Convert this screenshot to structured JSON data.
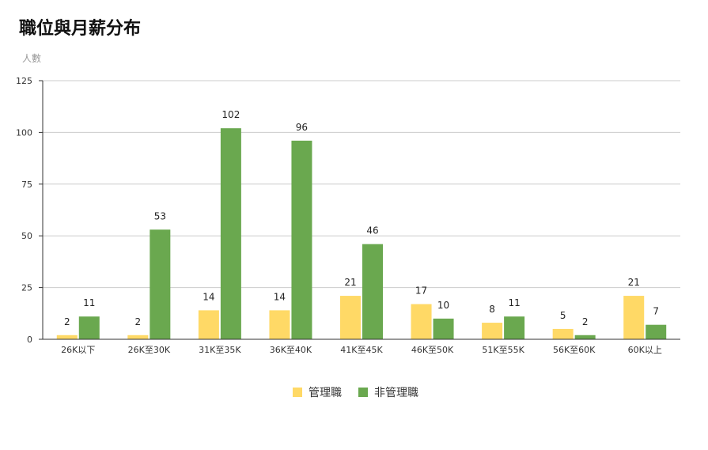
{
  "chart_data": {
    "type": "bar",
    "title": "職位與月薪分布",
    "ylabel": "人數",
    "xlabel": "",
    "ylim": [
      0,
      125
    ],
    "yticks": [
      0,
      25,
      50,
      75,
      100,
      125
    ],
    "grid": true,
    "legend_position": "bottom",
    "categories": [
      "26K以下",
      "26K至30K",
      "31K至35K",
      "36K至40K",
      "41K至45K",
      "46K至50K",
      "51K至55K",
      "56K至60K",
      "60K以上"
    ],
    "series": [
      {
        "name": "管理職",
        "color": "#FFD966",
        "values": [
          2,
          2,
          14,
          14,
          21,
          17,
          8,
          5,
          21
        ]
      },
      {
        "name": "非管理職",
        "color": "#6AA84F",
        "values": [
          11,
          53,
          102,
          96,
          46,
          10,
          11,
          2,
          7
        ]
      }
    ]
  }
}
